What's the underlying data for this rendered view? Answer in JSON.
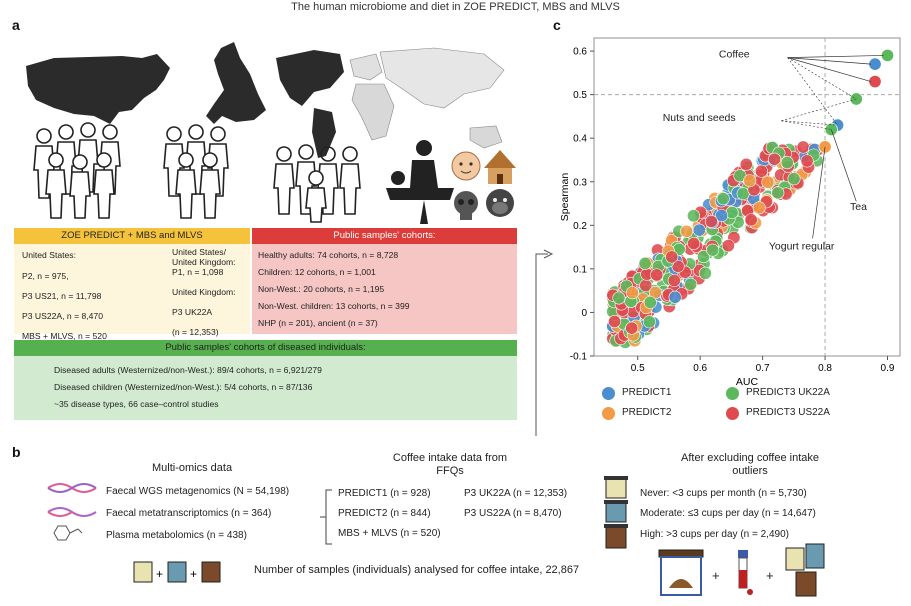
{
  "title": "The human microbiome and diet in ZOE PREDICT, MBS and MLVS",
  "panels": {
    "a": "a",
    "b": "b",
    "c": "c"
  },
  "zoe_box": {
    "header": "ZOE PREDICT + MBS and MLVS",
    "left": [
      "United States:",
      "P2, n = 975,",
      "P3 US21, n = 11,798",
      "P3 US22A, n = 8,470",
      "MBS + MLVS, n = 520"
    ],
    "right": [
      "United States/",
      "United Kingdom:",
      "P1, n = 1,098",
      "United Kingdom:",
      "P3 UK22A",
      "(n = 12,353)"
    ]
  },
  "public_box": {
    "header": "Public samples' cohorts:",
    "lines": [
      "Healthy adults: 74 cohorts, n = 8,728",
      "Children: 12 cohorts, n = 1,001",
      "Non-West.: 20 cohorts, n = 1,195",
      "Non-West. children: 13 cohorts, n = 399",
      "NHP (n = 201), ancient (n = 37)"
    ]
  },
  "diseased_box": {
    "header": "Public samples' cohorts of diseased individuals:",
    "lines": [
      "Diseased adults (Westernized/non-West.): 89/4 cohorts, n = 6,921/279",
      "Diseased children (Westernized/non-West.): 5/4 cohorts, n = 87/136",
      "~35 disease types, 66 case–control studies"
    ]
  },
  "panel_b": {
    "omics_title": "Multi-omics data",
    "omics": [
      "Faecal WGS metagenomics (N = 54,198)",
      "Faecal metatranscriptomics (n = 364)",
      "Plasma metabolomics (n = 438)"
    ],
    "ffq_title": [
      "Coffee intake data from",
      "FFQs"
    ],
    "ffq_left": [
      "PREDICT1 (n = 928)",
      "PREDICT2 (n = 844)",
      "MBS + MLVS (n = 520)"
    ],
    "ffq_right": [
      "P3 UK22A (n = 12,353)",
      "P3 US22A (n = 8,470)"
    ],
    "excl_title": [
      "After excluding coffee intake",
      "outliers"
    ],
    "excl": [
      "Never: <3 cups per month (n = 5,730)",
      "Moderate: ≤3 cups per day (n = 14,647)",
      "High: >3 cups per day (n = 2,490)"
    ],
    "total": "Number of samples (individuals) analysed for coffee intake, 22,867",
    "plus": "+"
  },
  "chart_data": {
    "type": "scatter",
    "xlabel": "AUC",
    "ylabel": "Spearman",
    "xlim": [
      0.43,
      0.92
    ],
    "ylim": [
      -0.1,
      0.63
    ],
    "xticks": [
      0.5,
      0.6,
      0.7,
      0.8,
      0.9
    ],
    "yticks": [
      -0.1,
      0,
      0.1,
      0.2,
      0.3,
      0.4,
      0.5,
      0.6
    ],
    "reference_lines": {
      "x": 0.8,
      "y": 0.5
    },
    "series": [
      {
        "name": "PREDICT1",
        "color": "#4a8ed0"
      },
      {
        "name": "PREDICT2",
        "color": "#f39a44"
      },
      {
        "name": "PREDICT3 UK22A",
        "color": "#5cb85c"
      },
      {
        "name": "PREDICT3 US22A",
        "color": "#de4a4e"
      }
    ],
    "highlighted": [
      {
        "series": "PREDICT3 UK22A",
        "x": 0.9,
        "y": 0.59
      },
      {
        "series": "PREDICT1",
        "x": 0.88,
        "y": 0.57
      },
      {
        "series": "PREDICT3 US22A",
        "x": 0.88,
        "y": 0.53
      },
      {
        "series": "PREDICT3 UK22A",
        "x": 0.85,
        "y": 0.49
      },
      {
        "series": "PREDICT1",
        "x": 0.82,
        "y": 0.43
      },
      {
        "series": "PREDICT3 UK22A",
        "x": 0.81,
        "y": 0.42
      },
      {
        "series": "PREDICT2",
        "x": 0.8,
        "y": 0.38
      }
    ],
    "annotations": [
      "Coffee",
      "Nuts and seeds",
      "Tea",
      "Yogurt regular"
    ],
    "legend_position": "bottom"
  }
}
